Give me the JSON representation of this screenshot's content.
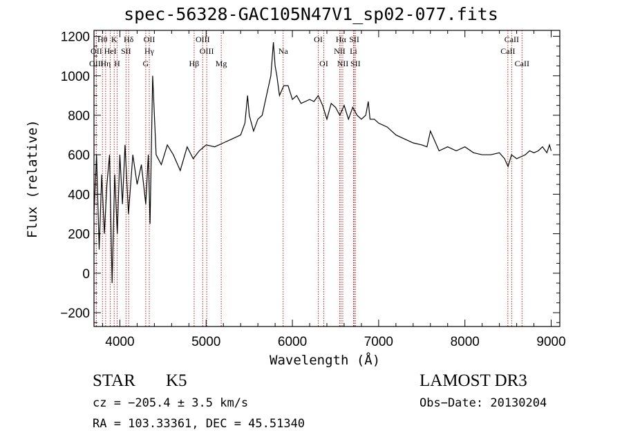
{
  "chart_data": {
    "type": "line",
    "title": "spec-56328-GAC105N47V1_sp02-077.fits",
    "xlabel": "Wavelength (Å)",
    "ylabel": "Flux (relative)",
    "xlim": [
      3700,
      9100
    ],
    "ylim": [
      -270,
      1230
    ],
    "xticks": [
      4000,
      5000,
      6000,
      7000,
      8000,
      9000
    ],
    "xtick_labels": [
      "4000",
      "5000",
      "6000",
      "7000",
      "8000",
      "9000"
    ],
    "yticks": [
      -200,
      0,
      200,
      400,
      600,
      800,
      1000,
      1200
    ],
    "ytick_labels": [
      "−200",
      "0",
      "200",
      "400",
      "600",
      "800",
      "1000",
      "1200"
    ],
    "line_color": "#000000",
    "marker_color": "#b22222",
    "series": [
      {
        "name": "spectrum",
        "x": [
          3700,
          3730,
          3760,
          3790,
          3820,
          3850,
          3880,
          3910,
          3940,
          3970,
          4000,
          4030,
          4060,
          4100,
          4150,
          4200,
          4250,
          4300,
          4330,
          4350,
          4380,
          4420,
          4480,
          4550,
          4620,
          4700,
          4780,
          4850,
          4920,
          5000,
          5100,
          5200,
          5300,
          5400,
          5450,
          5480,
          5500,
          5550,
          5600,
          5650,
          5700,
          5750,
          5780,
          5800,
          5820,
          5850,
          5900,
          5950,
          6000,
          6050,
          6100,
          6150,
          6200,
          6250,
          6300,
          6350,
          6400,
          6450,
          6500,
          6550,
          6600,
          6650,
          6700,
          6750,
          6800,
          6850,
          6880,
          6900,
          6950,
          7000,
          7100,
          7200,
          7300,
          7400,
          7500,
          7560,
          7600,
          7640,
          7700,
          7800,
          7900,
          8000,
          8100,
          8200,
          8300,
          8400,
          8460,
          8500,
          8540,
          8600,
          8650,
          8700,
          8750,
          8800,
          8850,
          8900,
          8950,
          8980,
          9000
        ],
        "y": [
          300,
          600,
          120,
          500,
          200,
          450,
          600,
          -50,
          500,
          200,
          600,
          350,
          650,
          300,
          600,
          450,
          550,
          350,
          600,
          250,
          1000,
          600,
          550,
          650,
          600,
          520,
          640,
          580,
          620,
          650,
          640,
          660,
          680,
          700,
          760,
          900,
          800,
          720,
          780,
          800,
          900,
          1000,
          1170,
          1050,
          1000,
          900,
          950,
          950,
          880,
          900,
          860,
          870,
          880,
          870,
          900,
          850,
          780,
          860,
          840,
          800,
          850,
          780,
          840,
          800,
          780,
          800,
          870,
          780,
          780,
          760,
          740,
          700,
          680,
          660,
          650,
          640,
          720,
          680,
          620,
          640,
          620,
          640,
          610,
          600,
          600,
          610,
          580,
          540,
          600,
          580,
          590,
          600,
          620,
          610,
          620,
          640,
          610,
          650,
          620
        ]
      }
    ],
    "line_markers": [
      {
        "label": "Hθ",
        "x": 3798,
        "row": 1
      },
      {
        "label": "K",
        "x": 3934,
        "row": 1
      },
      {
        "label": "Hδ",
        "x": 4102,
        "row": 1
      },
      {
        "label": "OII",
        "x": 4341,
        "row": 1
      },
      {
        "label": "OIII",
        "x": 4960,
        "row": 1
      },
      {
        "label": "OI",
        "x": 6300,
        "row": 1
      },
      {
        "label": "Hα",
        "x": 6563,
        "row": 1
      },
      {
        "label": "SII",
        "x": 6717,
        "row": 1
      },
      {
        "label": "CaII",
        "x": 8542,
        "row": 1
      },
      {
        "label": "OII",
        "x": 3727,
        "row": 2
      },
      {
        "label": "HeI",
        "x": 3889,
        "row": 2
      },
      {
        "label": "SII",
        "x": 4071,
        "row": 2
      },
      {
        "label": "Hγ",
        "x": 4341,
        "row": 2
      },
      {
        "label": "OIII",
        "x": 5007,
        "row": 2
      },
      {
        "label": "Na",
        "x": 5893,
        "row": 2
      },
      {
        "label": "NII",
        "x": 6548,
        "row": 2
      },
      {
        "label": "Li",
        "x": 6708,
        "row": 2
      },
      {
        "label": "CaII",
        "x": 8498,
        "row": 2
      },
      {
        "label": "OIII",
        "x": 3727,
        "row": 3
      },
      {
        "label": "Hη",
        "x": 3835,
        "row": 3
      },
      {
        "label": "H",
        "x": 3968,
        "row": 3
      },
      {
        "label": "G",
        "x": 4300,
        "row": 3
      },
      {
        "label": "Hβ",
        "x": 4861,
        "row": 3
      },
      {
        "label": "Mg",
        "x": 5175,
        "row": 3
      },
      {
        "label": "OI",
        "x": 6364,
        "row": 3
      },
      {
        "label": "NII",
        "x": 6584,
        "row": 3
      },
      {
        "label": "SII",
        "x": 6731,
        "row": 3
      },
      {
        "label": "CaII",
        "x": 8662,
        "row": 3
      }
    ]
  },
  "info": {
    "object_class": "STAR",
    "subclass": "K5",
    "survey": "LAMOST DR3",
    "cz": "cz = −205.4 ± 3.5 km/s",
    "obs_date": "Obs−Date: 20130204",
    "coords": "RA = 103.33361, DEC =  45.51340"
  }
}
